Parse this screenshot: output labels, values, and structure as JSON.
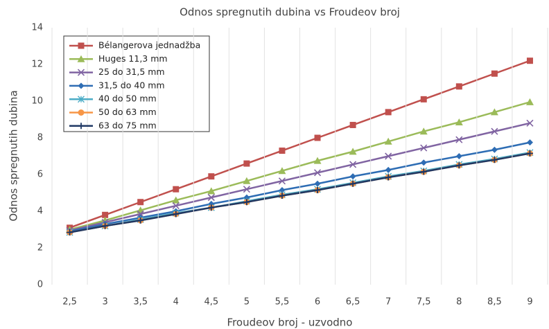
{
  "chart_data": {
    "type": "line",
    "title": "Odnos spregnutih dubina vs Froudeov broj",
    "x_label": "Froudeov broj - uzvodno",
    "y_label": "Odnos spregnutih dubina",
    "categories": [
      "2,5",
      "3",
      "3,5",
      "4",
      "4,5",
      "5",
      "5,5",
      "6",
      "6,5",
      "7",
      "7,5",
      "8",
      "8,5",
      "9"
    ],
    "ylim": [
      0,
      14
    ],
    "yticks": [
      0,
      2,
      4,
      6,
      8,
      10,
      12,
      14
    ],
    "grid": "x",
    "legend": "upper-left",
    "series": [
      {
        "name": "Bélangerova jednadžba",
        "color": "#c0504d",
        "marker": "square",
        "values": [
          3.1,
          3.8,
          4.5,
          5.2,
          5.9,
          6.6,
          7.3,
          8.0,
          8.7,
          9.4,
          10.1,
          10.8,
          11.5,
          12.2
        ]
      },
      {
        "name": "Huges 11,3 mm",
        "color": "#9bbb59",
        "marker": "triangle",
        "values": [
          3.0,
          3.5,
          4.05,
          4.6,
          5.1,
          5.65,
          6.2,
          6.75,
          7.25,
          7.8,
          8.35,
          8.85,
          9.4,
          9.95
        ]
      },
      {
        "name": "25 do 31,5 mm",
        "color": "#8064a2",
        "marker": "x",
        "values": [
          2.95,
          3.4,
          3.85,
          4.3,
          4.75,
          5.2,
          5.65,
          6.1,
          6.55,
          7.0,
          7.45,
          7.9,
          8.35,
          8.8
        ]
      },
      {
        "name": "31,5 do 40 mm",
        "color": "#2e6db4",
        "marker": "diamond",
        "values": [
          2.9,
          3.3,
          3.65,
          4.0,
          4.4,
          4.75,
          5.15,
          5.5,
          5.9,
          6.25,
          6.65,
          7.0,
          7.35,
          7.75
        ]
      },
      {
        "name": "40 do 50 mm",
        "color": "#4bacc6",
        "marker": "star",
        "values": [
          2.85,
          3.2,
          3.55,
          3.9,
          4.2,
          4.55,
          4.9,
          5.2,
          5.55,
          5.9,
          6.2,
          6.55,
          6.85,
          7.2
        ]
      },
      {
        "name": "50 do 63 mm",
        "color": "#f79646",
        "marker": "circle",
        "values": [
          2.85,
          3.2,
          3.5,
          3.85,
          4.2,
          4.5,
          4.85,
          5.15,
          5.5,
          5.85,
          6.15,
          6.5,
          6.8,
          7.15
        ]
      },
      {
        "name": "63 do 75 mm",
        "color": "#1f3864",
        "marker": "plus",
        "values": [
          2.85,
          3.2,
          3.5,
          3.85,
          4.2,
          4.5,
          4.85,
          5.15,
          5.5,
          5.85,
          6.15,
          6.5,
          6.8,
          7.15
        ]
      }
    ]
  }
}
